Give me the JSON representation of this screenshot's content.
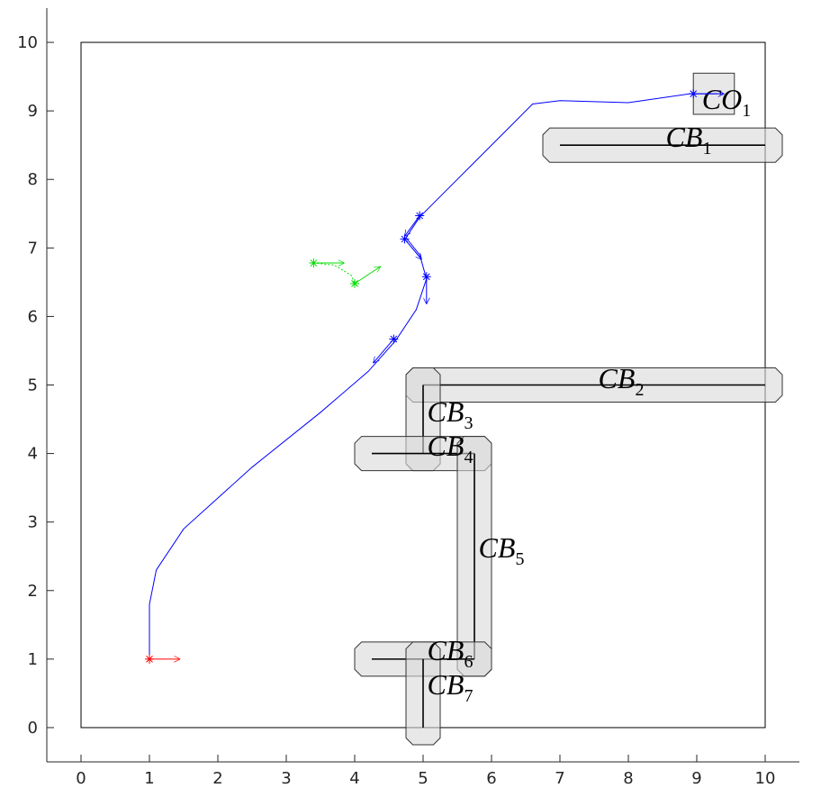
{
  "chart_data": {
    "type": "line",
    "xlim": [
      -0.5,
      10.5
    ],
    "ylim": [
      -0.5,
      10.5
    ],
    "xticks": [
      0,
      1,
      2,
      3,
      4,
      5,
      6,
      7,
      8,
      9,
      10
    ],
    "yticks": [
      0,
      1,
      2,
      3,
      4,
      5,
      6,
      7,
      8,
      9,
      10
    ],
    "workspace": {
      "x": [
        0,
        10
      ],
      "y": [
        0,
        10
      ]
    },
    "obstacles": [
      {
        "name": "CB",
        "index": "1",
        "x": [
          7,
          10
        ],
        "y": [
          8.5,
          8.5
        ]
      },
      {
        "name": "CB",
        "index": "2",
        "x": [
          5,
          10
        ],
        "y": [
          5,
          5
        ]
      },
      {
        "name": "CB",
        "index": "3",
        "x": [
          5,
          5
        ],
        "y": [
          4,
          5
        ]
      },
      {
        "name": "CB",
        "index": "4",
        "x": [
          4.25,
          5.75
        ],
        "y": [
          4,
          4
        ]
      },
      {
        "name": "CB",
        "index": "5",
        "x": [
          5.75,
          5.75
        ],
        "y": [
          1,
          4
        ]
      },
      {
        "name": "CB",
        "index": "6",
        "x": [
          4.25,
          5.75
        ],
        "y": [
          1,
          1
        ]
      },
      {
        "name": "CB",
        "index": "7",
        "x": [
          5,
          5
        ],
        "y": [
          0,
          1
        ]
      }
    ],
    "goal": {
      "name": "CO",
      "index": "1",
      "x": [
        8.95,
        9.55
      ],
      "y": [
        8.95,
        9.55
      ]
    },
    "series": [
      {
        "color": "#0000ff",
        "x": [
          1,
          1,
          1.1,
          1.5,
          2.5,
          3.5,
          4.2,
          4.6,
          4.9,
          5.05,
          4.95,
          4.75,
          4.95,
          5.7,
          6.3,
          6.6,
          7,
          8,
          8.9,
          9.3
        ],
        "y": [
          1,
          1.8,
          2.3,
          2.9,
          3.8,
          4.6,
          5.2,
          5.65,
          6.1,
          6.55,
          6.9,
          7.15,
          7.45,
          8.2,
          8.8,
          9.1,
          9.15,
          9.12,
          9.25,
          9.25
        ]
      },
      {
        "color": "#00dd00",
        "dotted": true,
        "x": [
          3.4,
          3.7,
          3.95,
          4
        ],
        "y": [
          6.78,
          6.75,
          6.6,
          6.48
        ]
      }
    ],
    "arrows": [
      {
        "color": "#ff0000",
        "x": 1,
        "y": 1,
        "dx": 0.45,
        "dy": 0
      },
      {
        "color": "#00dd00",
        "x": 3.4,
        "y": 6.78,
        "dx": 0.45,
        "dy": 0
      },
      {
        "color": "#00dd00",
        "x": 4,
        "y": 6.48,
        "dx": 0.38,
        "dy": 0.25
      },
      {
        "color": "#0000ff",
        "x": 4.57,
        "y": 5.67,
        "dx": -0.3,
        "dy": -0.35
      },
      {
        "color": "#0000ff",
        "x": 5.05,
        "y": 6.58,
        "dx": 0,
        "dy": -0.4
      },
      {
        "color": "#0000ff",
        "x": 4.73,
        "y": 7.13,
        "dx": 0.25,
        "dy": -0.3
      },
      {
        "color": "#0000ff",
        "x": 4.95,
        "y": 7.47,
        "dx": -0.22,
        "dy": -0.3
      },
      {
        "color": "#0000ff",
        "x": 8.95,
        "y": 9.25,
        "dx": 0.45,
        "dy": 0
      }
    ]
  }
}
